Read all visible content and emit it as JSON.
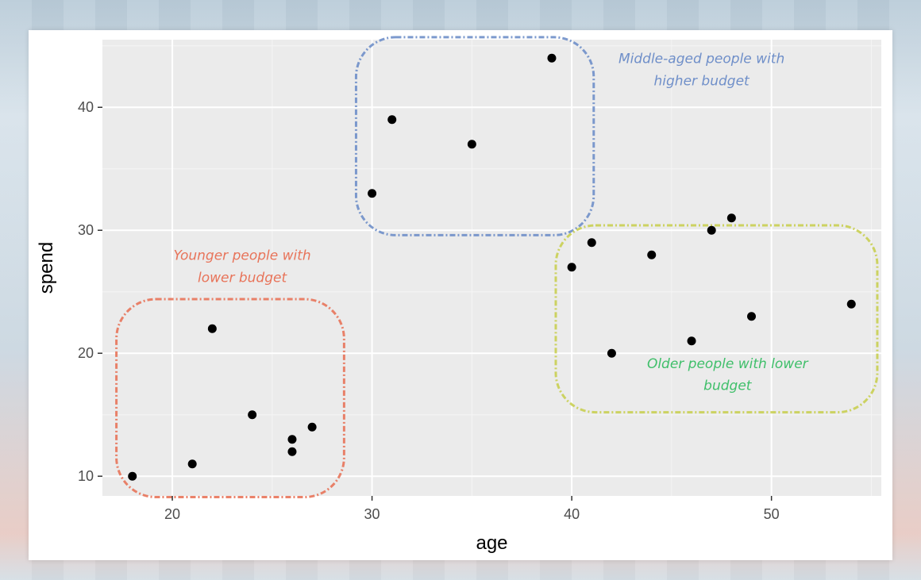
{
  "chart_data": {
    "type": "scatter",
    "title": "",
    "xlabel": "age",
    "ylabel": "spend",
    "xlim": [
      16.5,
      55.5
    ],
    "ylim": [
      8.4,
      45.5
    ],
    "xticks": [
      20,
      30,
      40,
      50
    ],
    "yticks": [
      10,
      20,
      30,
      40
    ],
    "grid": true,
    "points": [
      {
        "x": 18,
        "y": 10
      },
      {
        "x": 21,
        "y": 11
      },
      {
        "x": 22,
        "y": 22
      },
      {
        "x": 24,
        "y": 15
      },
      {
        "x": 26,
        "y": 13
      },
      {
        "x": 26,
        "y": 12
      },
      {
        "x": 27,
        "y": 14
      },
      {
        "x": 30,
        "y": 33
      },
      {
        "x": 31,
        "y": 39
      },
      {
        "x": 35,
        "y": 37
      },
      {
        "x": 39,
        "y": 44
      },
      {
        "x": 40,
        "y": 27
      },
      {
        "x": 41,
        "y": 29
      },
      {
        "x": 42,
        "y": 20
      },
      {
        "x": 44,
        "y": 28
      },
      {
        "x": 46,
        "y": 21
      },
      {
        "x": 47,
        "y": 30
      },
      {
        "x": 48,
        "y": 31
      },
      {
        "x": 49,
        "y": 23
      },
      {
        "x": 54,
        "y": 24
      }
    ],
    "annotations": [
      {
        "text_lines": [
          "Younger people with",
          "lower budget"
        ],
        "color": "#e8745a",
        "box_x": [
          17.2,
          28.6
        ],
        "box_y": [
          8.3,
          24.4
        ],
        "text_x": 23.5,
        "text_y": [
          27.6,
          25.8
        ]
      },
      {
        "text_lines": [
          "Middle-aged people with",
          "higher budget"
        ],
        "color": "#6f8fc9",
        "box_x": [
          29.2,
          41.1
        ],
        "box_y": [
          29.6,
          45.7
        ],
        "text_x": 46.5,
        "text_y": [
          43.6,
          41.8
        ]
      },
      {
        "text_lines": [
          "Older people with lower",
          "budget"
        ],
        "color": "#3fbf6a",
        "box_x": [
          39.2,
          55.3
        ],
        "box_y": [
          15.2,
          30.4
        ],
        "text_x": 47.8,
        "text_y": [
          18.8,
          17.0
        ]
      }
    ],
    "box_colors": [
      "#e8745a",
      "#6f8fc9",
      "#c9cf52"
    ]
  }
}
